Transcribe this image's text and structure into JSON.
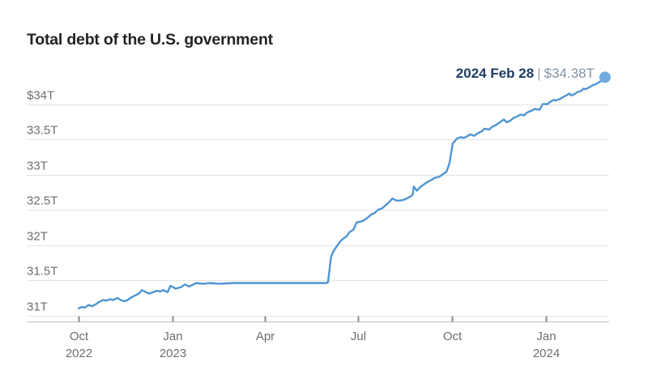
{
  "colors": {
    "line": "#4f95d3",
    "end_dot": "#70abdc",
    "title_text": "#232323",
    "annotation_date": "#1e3c64",
    "annotation_separator": "#9aa5b1",
    "annotation_value": "#8494a6",
    "axis_text": "#6e6e6e",
    "gridline": "#e4e4e4",
    "axis_line": "#bfbfbf",
    "tick_mark": "#8a8a8a",
    "background": "#ffffff"
  },
  "chart_data": {
    "type": "line",
    "title": "Total debt of the U.S. government",
    "unit": "trillions of U.S. dollars",
    "grid": "horizontal",
    "legend": "none",
    "end_label": {
      "date": "2024 Feb 28",
      "separator": "|",
      "value": "$34.38T"
    },
    "y_axis": {
      "range": [
        31,
        34.5
      ],
      "ticks": [
        {
          "label": "$34T",
          "value": 34
        },
        {
          "label": "33.5T",
          "value": 33.5
        },
        {
          "label": "33T",
          "value": 33
        },
        {
          "label": "32.5T",
          "value": 32.5
        },
        {
          "label": "32T",
          "value": 32
        },
        {
          "label": "31.5T",
          "value": 31.5
        },
        {
          "label": "31T",
          "value": 31
        }
      ]
    },
    "x_axis": {
      "range": [
        "2022-10-01",
        "2024-02-28"
      ],
      "ticks": [
        {
          "month": "Oct",
          "year": "2022",
          "date": "2022-10-01"
        },
        {
          "month": "Jan",
          "year": "2023",
          "date": "2023-01-01"
        },
        {
          "month": "Apr",
          "year": "",
          "date": "2023-04-01"
        },
        {
          "month": "Jul",
          "year": "",
          "date": "2023-07-01"
        },
        {
          "month": "Oct",
          "year": "",
          "date": "2023-10-01"
        },
        {
          "month": "Jan",
          "year": "2024",
          "date": "2024-01-01"
        }
      ]
    },
    "end_marker": {
      "date": "2024-02-28",
      "value": 34.38
    },
    "points": [
      [
        "2022-10-01",
        31.1
      ],
      [
        "2022-10-04",
        31.12
      ],
      [
        "2022-10-07",
        31.11
      ],
      [
        "2022-10-11",
        31.15
      ],
      [
        "2022-10-14",
        31.13
      ],
      [
        "2022-10-18",
        31.16
      ],
      [
        "2022-10-21",
        31.19
      ],
      [
        "2022-10-25",
        31.22
      ],
      [
        "2022-10-28",
        31.21
      ],
      [
        "2022-11-01",
        31.23
      ],
      [
        "2022-11-04",
        31.22
      ],
      [
        "2022-11-08",
        31.25
      ],
      [
        "2022-11-11",
        31.22
      ],
      [
        "2022-11-15",
        31.2
      ],
      [
        "2022-11-18",
        31.22
      ],
      [
        "2022-11-22",
        31.26
      ],
      [
        "2022-11-25",
        31.28
      ],
      [
        "2022-11-29",
        31.31
      ],
      [
        "2022-12-02",
        31.36
      ],
      [
        "2022-12-06",
        31.33
      ],
      [
        "2022-12-09",
        31.31
      ],
      [
        "2022-12-13",
        31.33
      ],
      [
        "2022-12-16",
        31.35
      ],
      [
        "2022-12-20",
        31.34
      ],
      [
        "2022-12-23",
        31.36
      ],
      [
        "2022-12-27",
        31.33
      ],
      [
        "2022-12-30",
        31.42
      ],
      [
        "2023-01-04",
        31.38
      ],
      [
        "2023-01-09",
        31.4
      ],
      [
        "2023-01-13",
        31.44
      ],
      [
        "2023-01-17",
        31.41
      ],
      [
        "2023-01-20",
        31.43
      ],
      [
        "2023-01-24",
        31.46
      ],
      [
        "2023-01-31",
        31.45
      ],
      [
        "2023-02-07",
        31.46
      ],
      [
        "2023-02-15",
        31.45
      ],
      [
        "2023-02-28",
        31.46
      ],
      [
        "2023-03-15",
        31.46
      ],
      [
        "2023-03-31",
        31.46
      ],
      [
        "2023-04-14",
        31.46
      ],
      [
        "2023-04-28",
        31.46
      ],
      [
        "2023-05-15",
        31.46
      ],
      [
        "2023-05-31",
        31.46
      ],
      [
        "2023-06-02",
        31.47
      ],
      [
        "2023-06-05",
        31.83
      ],
      [
        "2023-06-07",
        31.9
      ],
      [
        "2023-06-09",
        31.95
      ],
      [
        "2023-06-13",
        32.03
      ],
      [
        "2023-06-16",
        32.08
      ],
      [
        "2023-06-20",
        32.12
      ],
      [
        "2023-06-23",
        32.18
      ],
      [
        "2023-06-27",
        32.22
      ],
      [
        "2023-06-30",
        32.32
      ],
      [
        "2023-07-06",
        32.34
      ],
      [
        "2023-07-11",
        32.39
      ],
      [
        "2023-07-14",
        32.43
      ],
      [
        "2023-07-18",
        32.46
      ],
      [
        "2023-07-21",
        32.5
      ],
      [
        "2023-07-25",
        32.52
      ],
      [
        "2023-07-28",
        32.56
      ],
      [
        "2023-08-01",
        32.61
      ],
      [
        "2023-08-04",
        32.66
      ],
      [
        "2023-08-08",
        32.63
      ],
      [
        "2023-08-11",
        32.63
      ],
      [
        "2023-08-15",
        32.64
      ],
      [
        "2023-08-18",
        32.66
      ],
      [
        "2023-08-22",
        32.69
      ],
      [
        "2023-08-24",
        32.72
      ],
      [
        "2023-08-25",
        32.83
      ],
      [
        "2023-08-28",
        32.77
      ],
      [
        "2023-08-31",
        32.82
      ],
      [
        "2023-09-06",
        32.88
      ],
      [
        "2023-09-08",
        32.9
      ],
      [
        "2023-09-12",
        32.93
      ],
      [
        "2023-09-14",
        32.95
      ],
      [
        "2023-09-19",
        32.97
      ],
      [
        "2023-09-22",
        33.0
      ],
      [
        "2023-09-26",
        33.04
      ],
      [
        "2023-09-29",
        33.17
      ],
      [
        "2023-10-02",
        33.44
      ],
      [
        "2023-10-04",
        33.47
      ],
      [
        "2023-10-06",
        33.51
      ],
      [
        "2023-10-10",
        33.53
      ],
      [
        "2023-10-13",
        33.52
      ],
      [
        "2023-10-17",
        33.55
      ],
      [
        "2023-10-19",
        33.57
      ],
      [
        "2023-10-23",
        33.55
      ],
      [
        "2023-10-26",
        33.58
      ],
      [
        "2023-10-31",
        33.62
      ],
      [
        "2023-11-02",
        33.65
      ],
      [
        "2023-11-07",
        33.64
      ],
      [
        "2023-11-09",
        33.67
      ],
      [
        "2023-11-13",
        33.7
      ],
      [
        "2023-11-15",
        33.72
      ],
      [
        "2023-11-17",
        33.74
      ],
      [
        "2023-11-21",
        33.78
      ],
      [
        "2023-11-24",
        33.74
      ],
      [
        "2023-11-28",
        33.77
      ],
      [
        "2023-11-30",
        33.8
      ],
      [
        "2023-12-05",
        33.83
      ],
      [
        "2023-12-07",
        33.85
      ],
      [
        "2023-12-11",
        33.84
      ],
      [
        "2023-12-13",
        33.87
      ],
      [
        "2023-12-15",
        33.89
      ],
      [
        "2023-12-19",
        33.91
      ],
      [
        "2023-12-21",
        33.93
      ],
      [
        "2023-12-26",
        33.92
      ],
      [
        "2023-12-29",
        34.0
      ],
      [
        "2024-01-03",
        34.0
      ],
      [
        "2024-01-05",
        34.03
      ],
      [
        "2024-01-09",
        34.06
      ],
      [
        "2024-01-11",
        34.05
      ],
      [
        "2024-01-16",
        34.08
      ],
      [
        "2024-01-18",
        34.1
      ],
      [
        "2024-01-22",
        34.13
      ],
      [
        "2024-01-24",
        34.15
      ],
      [
        "2024-01-26",
        34.12
      ],
      [
        "2024-01-30",
        34.15
      ],
      [
        "2024-02-01",
        34.17
      ],
      [
        "2024-02-05",
        34.19
      ],
      [
        "2024-02-07",
        34.22
      ],
      [
        "2024-02-09",
        34.21
      ],
      [
        "2024-02-13",
        34.24
      ],
      [
        "2024-02-15",
        34.26
      ],
      [
        "2024-02-20",
        34.29
      ],
      [
        "2024-02-22",
        34.31
      ],
      [
        "2024-02-26",
        34.34
      ],
      [
        "2024-02-28",
        34.38
      ]
    ]
  }
}
